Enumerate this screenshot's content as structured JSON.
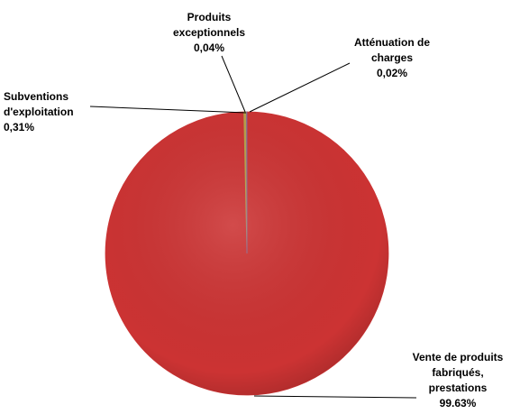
{
  "chart_data": {
    "type": "pie",
    "categories": [
      "Atténuation de charges",
      "Vente de produits fabriqués, prestations",
      "Subventions d'exploitation",
      "Produits exceptionnels"
    ],
    "values": [
      0.02,
      99.63,
      0.31,
      0.04
    ],
    "value_labels": [
      "0,02%",
      "99.63%",
      "0,31%",
      "0,04%"
    ],
    "colors": [
      "#9bbb59",
      "#cc3333",
      "#b8a04a",
      "#8064a2"
    ]
  }
}
